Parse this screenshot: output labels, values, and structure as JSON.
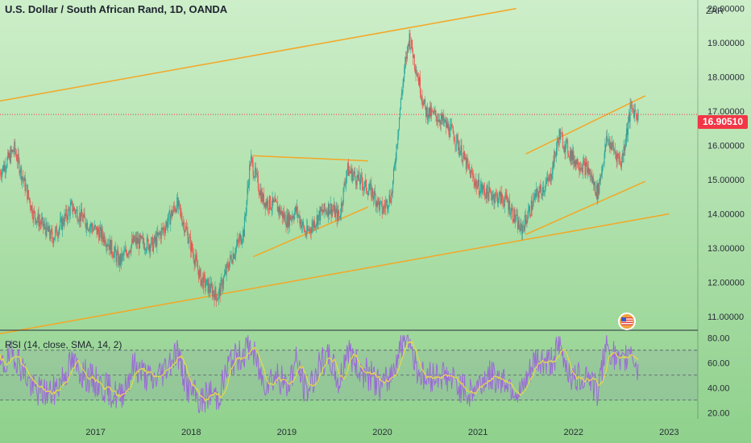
{
  "header": {
    "title": "U.S. Dollar / South African Rand, 1D, OANDA",
    "currency": "ZAR"
  },
  "price_badge": {
    "value": "16.90510",
    "color": "#f23645"
  },
  "rsi_panel": {
    "label": "RSI (14, close, SMA, 14, 2)"
  },
  "colors": {
    "trendline": "#f5a623",
    "candle_up": "#26a69a",
    "candle_down": "#ef5350",
    "rsi_line": "#9b6bd6",
    "rsi_ma": "#e8d84a",
    "bg_top": "#cdeec9",
    "bg_bottom": "#8fd18c"
  },
  "flag_icon": "us-flag-icon",
  "chart_data": [
    {
      "type": "candlestick",
      "title": "U.S. Dollar / South African Rand, 1D, OANDA",
      "ylabel": "ZAR",
      "ylim": [
        10.6,
        20.25
      ],
      "yticks": [
        11.0,
        12.0,
        13.0,
        14.0,
        15.0,
        16.0,
        17.0,
        18.0,
        19.0,
        20.0
      ],
      "ytick_labels": [
        "11.00000",
        "12.00000",
        "13.00000",
        "14.00000",
        "15.00000",
        "16.00000",
        "17.00000",
        "18.00000",
        "19.00000",
        "20.00000"
      ],
      "xlim": [
        2016.0,
        2023.3
      ],
      "xticks": [
        "2017",
        "2018",
        "2019",
        "2020",
        "2021",
        "2022",
        "2023"
      ],
      "xtick_positions": [
        2017.0,
        2018.0,
        2019.0,
        2020.0,
        2021.0,
        2022.0,
        2023.0
      ],
      "last_price": 16.9051,
      "series": [
        {
          "x": [
            2016.0,
            2016.15,
            2016.35,
            2016.55,
            2016.75,
            2016.92,
            2017.1,
            2017.25,
            2017.4,
            2017.6,
            2017.72,
            2017.85,
            2017.95,
            2018.1,
            2018.2,
            2018.28,
            2018.4,
            2018.55,
            2018.62,
            2018.75,
            2018.9,
            2019.0,
            2019.1,
            2019.2,
            2019.35,
            2019.45,
            2019.55,
            2019.63,
            2019.75,
            2019.9,
            2020.0,
            2020.1,
            2020.2,
            2020.28,
            2020.35,
            2020.45,
            2020.6,
            2020.75,
            2020.9,
            2021.0,
            2021.1,
            2021.3,
            2021.45,
            2021.6,
            2021.75,
            2021.85,
            2022.0,
            2022.15,
            2022.25,
            2022.35,
            2022.5,
            2022.6,
            2022.68
          ],
          "values": [
            15.2,
            15.9,
            14.0,
            13.3,
            14.2,
            13.7,
            13.3,
            12.6,
            13.2,
            13.1,
            13.6,
            14.3,
            13.5,
            12.1,
            11.8,
            11.6,
            12.6,
            13.5,
            15.6,
            14.4,
            14.2,
            13.8,
            14.1,
            13.4,
            14.0,
            14.2,
            13.9,
            15.3,
            15.0,
            14.6,
            14.1,
            14.6,
            17.5,
            19.2,
            18.3,
            17.0,
            16.8,
            16.3,
            15.3,
            14.8,
            14.6,
            14.4,
            13.5,
            14.5,
            15.0,
            16.3,
            15.6,
            15.3,
            14.6,
            16.2,
            15.5,
            17.1,
            16.9
          ]
        }
      ],
      "annotations": [
        {
          "type": "trendline",
          "from": [
            2016.0,
            17.3
          ],
          "to": [
            2021.4,
            20.0
          ]
        },
        {
          "type": "trendline",
          "from": [
            2016.0,
            10.5
          ],
          "to": [
            2023.0,
            14.0
          ]
        },
        {
          "type": "trendline",
          "from": [
            2018.65,
            15.7
          ],
          "to": [
            2019.85,
            15.55
          ]
        },
        {
          "type": "trendline",
          "from": [
            2018.65,
            12.75
          ],
          "to": [
            2019.85,
            14.2
          ]
        },
        {
          "type": "trendline",
          "from": [
            2021.5,
            15.75
          ],
          "to": [
            2022.75,
            17.45
          ]
        },
        {
          "type": "trendline",
          "from": [
            2021.5,
            13.4
          ],
          "to": [
            2022.75,
            14.95
          ]
        }
      ]
    },
    {
      "type": "line",
      "title": "RSI (14, close, SMA, 14, 2)",
      "ylim": [
        15,
        86
      ],
      "yticks": [
        20.0,
        40.0,
        60.0,
        80.0
      ],
      "ytick_labels": [
        "20.00",
        "40.00",
        "60.00",
        "80.00"
      ],
      "bands": [
        30,
        50,
        70
      ],
      "series": [
        {
          "x": [
            2016.0,
            2016.15,
            2016.35,
            2016.55,
            2016.75,
            2016.92,
            2017.1,
            2017.25,
            2017.4,
            2017.6,
            2017.72,
            2017.85,
            2017.95,
            2018.1,
            2018.2,
            2018.28,
            2018.4,
            2018.55,
            2018.62,
            2018.75,
            2018.9,
            2019.0,
            2019.1,
            2019.2,
            2019.35,
            2019.45,
            2019.55,
            2019.63,
            2019.75,
            2019.9,
            2020.0,
            2020.1,
            2020.2,
            2020.28,
            2020.35,
            2020.45,
            2020.6,
            2020.75,
            2020.9,
            2021.0,
            2021.1,
            2021.3,
            2021.45,
            2021.6,
            2021.75,
            2021.85,
            2022.0,
            2022.15,
            2022.25,
            2022.35,
            2022.5,
            2022.6,
            2022.68
          ],
          "values": [
            55,
            68,
            38,
            35,
            60,
            48,
            40,
            32,
            58,
            45,
            55,
            70,
            42,
            28,
            36,
            32,
            60,
            68,
            74,
            45,
            50,
            40,
            62,
            36,
            58,
            64,
            42,
            72,
            55,
            48,
            40,
            52,
            76,
            80,
            58,
            46,
            52,
            45,
            35,
            42,
            50,
            46,
            33,
            62,
            60,
            72,
            46,
            52,
            35,
            76,
            55,
            74,
            50
          ]
        }
      ]
    }
  ]
}
